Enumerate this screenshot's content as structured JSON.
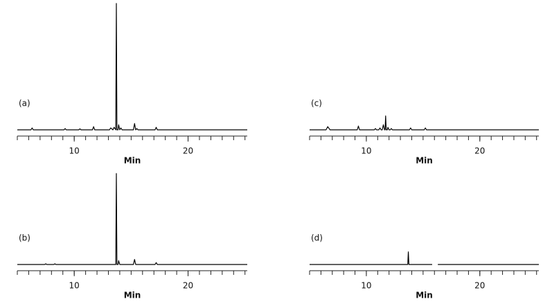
{
  "chart_data": [
    {
      "type": "line",
      "label": "(a)",
      "xlabel": "Min",
      "xlim": [
        5,
        25.2
      ],
      "ylim": [
        0,
        100
      ],
      "xticks": [
        10,
        20
      ],
      "minor_xticks": [
        5,
        6,
        7,
        8,
        9,
        10,
        11,
        12,
        13,
        14,
        15,
        16,
        17,
        18,
        19,
        20,
        21,
        22,
        23,
        24,
        25
      ],
      "color": "#000000",
      "x": [
        5,
        6.2,
        6.3,
        6.4,
        9.1,
        9.2,
        9.3,
        10.4,
        10.5,
        10.6,
        11.6,
        11.7,
        11.8,
        13.1,
        13.2,
        13.4,
        13.5,
        13.65,
        13.7,
        13.75,
        13.85,
        13.9,
        14.0,
        14.1,
        14.2,
        15.2,
        15.3,
        15.4,
        15.5,
        15.6,
        17.1,
        17.2,
        17.3,
        25.2
      ],
      "values": [
        0,
        0,
        1.5,
        0,
        0,
        1,
        0,
        0,
        0.8,
        0,
        0,
        2.5,
        0,
        0,
        1.5,
        0,
        2,
        0,
        100,
        0,
        0,
        4,
        0,
        1.5,
        0,
        0,
        5,
        0,
        1,
        0,
        0,
        2,
        0,
        0
      ]
    },
    {
      "type": "line",
      "label": "(b)",
      "xlabel": "Min",
      "xlim": [
        5,
        25.2
      ],
      "ylim": [
        0,
        100
      ],
      "xticks": [
        10,
        20
      ],
      "minor_xticks": [
        5,
        6,
        7,
        8,
        9,
        10,
        11,
        12,
        13,
        14,
        15,
        16,
        17,
        18,
        19,
        20,
        21,
        22,
        23,
        24,
        25
      ],
      "color": "#000000",
      "x": [
        5,
        7.4,
        7.5,
        7.6,
        8.2,
        8.3,
        8.4,
        13.65,
        13.7,
        13.75,
        13.85,
        13.9,
        14.0,
        15.2,
        15.3,
        15.4,
        17.1,
        17.2,
        17.3,
        25.2
      ],
      "values": [
        0,
        0,
        0.5,
        0,
        0,
        0.5,
        0,
        0,
        72,
        0,
        0,
        3,
        0,
        0,
        4,
        0,
        0,
        1.5,
        0,
        0
      ]
    },
    {
      "type": "line",
      "label": "(c)",
      "xlabel": "Min",
      "xlim": [
        5,
        25.2
      ],
      "ylim": [
        0,
        100
      ],
      "xticks": [
        10,
        20
      ],
      "minor_xticks": [
        5,
        6,
        7,
        8,
        9,
        10,
        11,
        12,
        13,
        14,
        15,
        16,
        17,
        18,
        19,
        20,
        21,
        22,
        23,
        24,
        25
      ],
      "color": "#000000",
      "x": [
        5,
        6.45,
        6.6,
        6.8,
        9.2,
        9.3,
        9.4,
        10.7,
        10.8,
        10.9,
        11.1,
        11.2,
        11.3,
        11.4,
        11.5,
        11.6,
        11.65,
        11.7,
        11.75,
        11.85,
        11.9,
        12.0,
        12.1,
        12.2,
        12.3,
        13.8,
        13.9,
        14.0,
        15.1,
        15.2,
        15.3,
        25.2
      ],
      "values": [
        0,
        0,
        2.5,
        0,
        0,
        3,
        0,
        0,
        1,
        0,
        0,
        1.5,
        0,
        0,
        4,
        0,
        0,
        11,
        0,
        0,
        2,
        0,
        0,
        1,
        0,
        0,
        1.5,
        0,
        0,
        1.5,
        0,
        0
      ]
    },
    {
      "type": "line",
      "label": "(d)",
      "xlabel": "Min",
      "xlim": [
        5,
        25.2
      ],
      "ylim": [
        0,
        100
      ],
      "xticks": [
        10,
        20
      ],
      "minor_xticks": [
        5,
        6,
        7,
        8,
        9,
        10,
        11,
        12,
        13,
        14,
        15,
        16,
        17,
        18,
        19,
        20,
        21,
        22,
        23,
        24,
        25
      ],
      "color": "#000000",
      "x": [
        5,
        13.65,
        13.7,
        13.75,
        15.8,
        16.0,
        16.3,
        25.2
      ],
      "values": [
        0,
        0,
        10,
        0,
        0,
        null,
        0,
        0
      ]
    }
  ]
}
